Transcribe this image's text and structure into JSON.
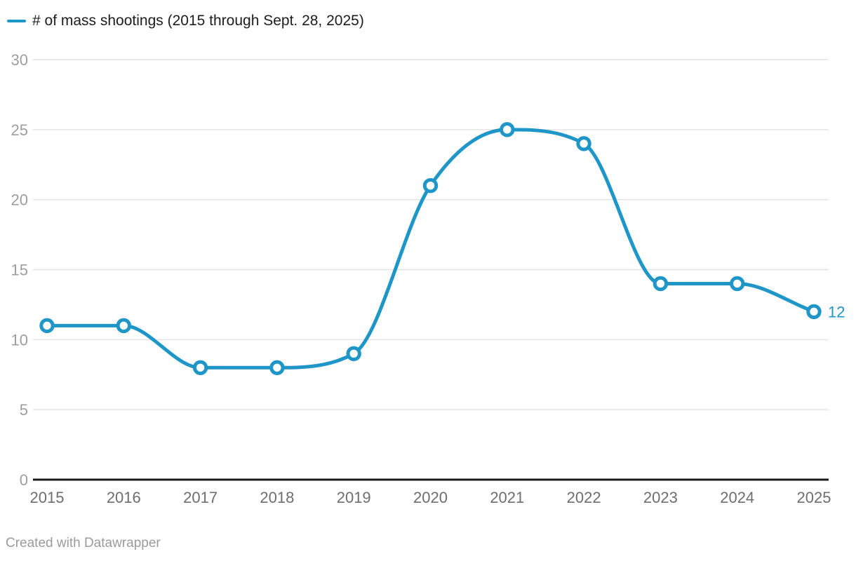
{
  "legend": {
    "label": "# of mass shootings (2015 through Sept. 28, 2025)"
  },
  "footer": {
    "credit": "Created with Datawrapper"
  },
  "colors": {
    "line": "#1f96c8",
    "marker_fill": "#ffffff",
    "grid": "#e4e4e4",
    "baseline": "#1a1a1a",
    "y_tick_label": "#9e9e9e",
    "x_tick_label": "#6e6e6e",
    "end_label": "#1f96c8",
    "legend_text": "#1d1d1d",
    "credit_text": "#9b9b9b",
    "background": "#ffffff"
  },
  "chart_data": {
    "type": "line",
    "title": "# of mass shootings (2015 through Sept. 28, 2025)",
    "categories": [
      "2015",
      "2016",
      "2017",
      "2018",
      "2019",
      "2020",
      "2021",
      "2022",
      "2023",
      "2024",
      "2025"
    ],
    "series": [
      {
        "name": "# of mass shootings (2015 through Sept. 28, 2025)",
        "values": [
          11,
          11,
          8,
          8,
          9,
          21,
          25,
          24,
          14,
          14,
          12
        ]
      }
    ],
    "xlabel": "",
    "ylabel": "",
    "y_ticks": [
      0,
      5,
      10,
      15,
      20,
      25,
      30
    ],
    "ylim": [
      0,
      30
    ],
    "grid": true,
    "legend_position": "top-left",
    "curve": "monotone",
    "marker": "open-circle",
    "end_value_label": "12"
  }
}
